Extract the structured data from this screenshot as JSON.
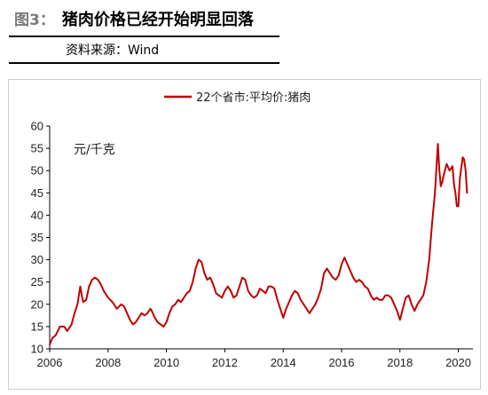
{
  "header": {
    "figure_label": "图3：",
    "title": "猪肉价格已经开始明显回落",
    "source": "资料来源：Wind"
  },
  "chart_data": {
    "type": "line",
    "title": "",
    "unit_label": "元/千克",
    "legend": {
      "position": "top-center"
    },
    "xlim": [
      2006,
      2020.5
    ],
    "ylim": [
      10,
      60
    ],
    "x_ticks": [
      "2006",
      "2008",
      "2010",
      "2012",
      "2014",
      "2016",
      "2018",
      "2020"
    ],
    "y_ticks": [
      "10",
      "15",
      "20",
      "25",
      "30",
      "35",
      "40",
      "45",
      "50",
      "55",
      "60"
    ],
    "grid": false,
    "series": [
      {
        "name": "22个省市:平均价:猪肉",
        "color": "#c00000",
        "x": [
          2006.0,
          2006.1,
          2006.2,
          2006.35,
          2006.5,
          2006.6,
          2006.75,
          2006.85,
          2006.95,
          2007.05,
          2007.1,
          2007.15,
          2007.25,
          2007.35,
          2007.45,
          2007.55,
          2007.65,
          2007.75,
          2007.85,
          2008.0,
          2008.15,
          2008.3,
          2008.45,
          2008.55,
          2008.65,
          2008.75,
          2008.85,
          2008.95,
          2009.05,
          2009.15,
          2009.25,
          2009.35,
          2009.45,
          2009.5,
          2009.6,
          2009.7,
          2009.8,
          2009.9,
          2010.0,
          2010.1,
          2010.2,
          2010.3,
          2010.4,
          2010.5,
          2010.6,
          2010.7,
          2010.8,
          2010.9,
          2011.0,
          2011.1,
          2011.2,
          2011.3,
          2011.4,
          2011.5,
          2011.6,
          2011.7,
          2011.8,
          2011.9,
          2012.0,
          2012.1,
          2012.2,
          2012.3,
          2012.4,
          2012.5,
          2012.6,
          2012.7,
          2012.8,
          2012.9,
          2013.0,
          2013.1,
          2013.2,
          2013.3,
          2013.4,
          2013.5,
          2013.6,
          2013.7,
          2013.8,
          2013.9,
          2014.0,
          2014.1,
          2014.2,
          2014.3,
          2014.4,
          2014.5,
          2014.6,
          2014.7,
          2014.8,
          2014.9,
          2015.0,
          2015.1,
          2015.2,
          2015.3,
          2015.4,
          2015.5,
          2015.6,
          2015.7,
          2015.8,
          2015.9,
          2016.0,
          2016.1,
          2016.2,
          2016.3,
          2016.4,
          2016.5,
          2016.6,
          2016.7,
          2016.8,
          2016.9,
          2017.0,
          2017.1,
          2017.2,
          2017.3,
          2017.4,
          2017.5,
          2017.6,
          2017.7,
          2017.8,
          2017.9,
          2018.0,
          2018.1,
          2018.2,
          2018.3,
          2018.4,
          2018.5,
          2018.6,
          2018.7,
          2018.8,
          2018.9,
          2019.0,
          2019.1,
          2019.2,
          2019.3,
          2019.35,
          2019.4,
          2019.45,
          2019.5,
          2019.6,
          2019.7,
          2019.8,
          2019.85,
          2019.9,
          2019.95,
          2020.0,
          2020.05,
          2020.1,
          2020.15,
          2020.2,
          2020.25,
          2020.3
        ],
        "values": [
          11.0,
          12.5,
          13.0,
          15.0,
          15.0,
          14.0,
          15.5,
          18.0,
          20.0,
          24.0,
          22.0,
          20.5,
          21.0,
          24.0,
          25.5,
          26.0,
          25.5,
          24.5,
          23.0,
          21.5,
          20.5,
          19.0,
          20.0,
          19.5,
          18.0,
          16.5,
          15.5,
          16.0,
          17.0,
          18.0,
          17.5,
          18.0,
          19.0,
          18.5,
          17.0,
          16.0,
          15.5,
          15.0,
          16.0,
          18.0,
          19.5,
          20.0,
          21.0,
          20.5,
          21.5,
          22.5,
          23.0,
          25.0,
          28.0,
          30.0,
          29.5,
          27.0,
          25.5,
          26.0,
          24.5,
          22.5,
          22.0,
          21.5,
          23.0,
          24.0,
          23.0,
          21.5,
          22.0,
          24.0,
          26.0,
          25.5,
          23.0,
          22.0,
          21.5,
          22.0,
          23.5,
          23.0,
          22.5,
          24.0,
          24.0,
          23.5,
          21.0,
          19.0,
          17.0,
          19.0,
          20.5,
          22.0,
          23.0,
          22.5,
          21.0,
          20.0,
          19.0,
          18.0,
          19.0,
          20.0,
          21.5,
          23.5,
          27.0,
          28.0,
          27.0,
          26.0,
          25.5,
          26.5,
          29.0,
          30.5,
          29.0,
          27.5,
          26.0,
          25.0,
          25.5,
          25.0,
          24.0,
          23.5,
          22.0,
          21.0,
          21.5,
          21.0,
          21.0,
          22.0,
          22.0,
          21.5,
          20.0,
          18.5,
          16.5,
          19.0,
          21.5,
          22.0,
          20.0,
          18.5,
          20.0,
          21.0,
          22.0,
          25.0,
          30.0,
          38.0,
          45.0,
          56.0,
          50.0,
          46.5,
          47.5,
          49.0,
          51.5,
          50.0,
          51.0,
          47.0,
          45.0,
          42.0,
          42.0,
          48.0,
          50.5,
          53.0,
          52.5,
          50.0,
          45.0
        ]
      }
    ]
  }
}
